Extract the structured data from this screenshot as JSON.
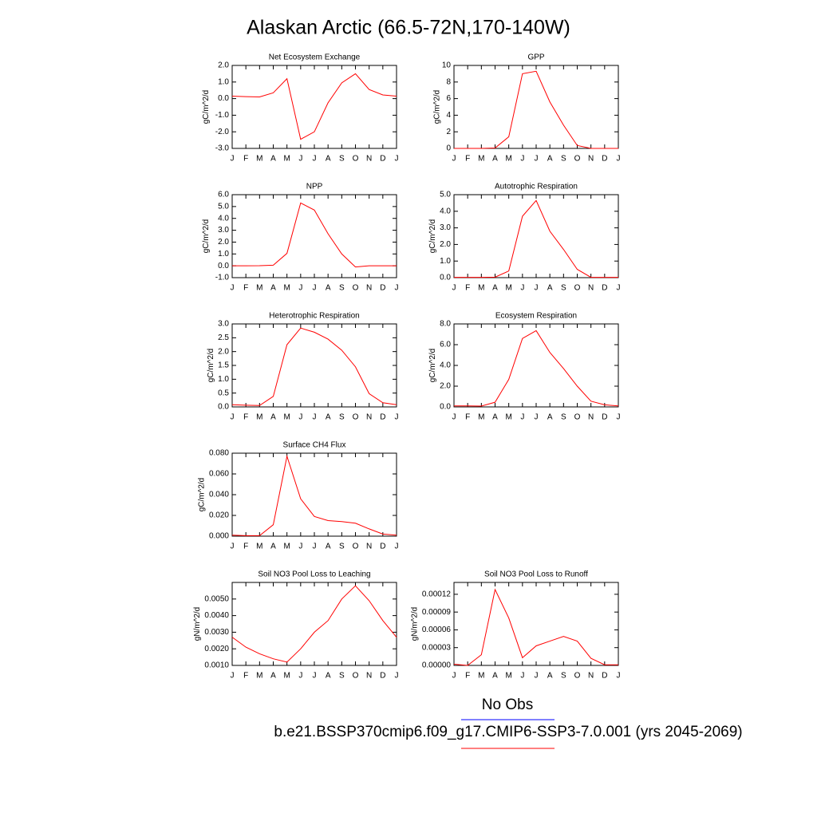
{
  "title": "Alaskan Arctic (66.5-72N,170-140W)",
  "legend": [
    {
      "name": "No Obs",
      "color": "#0000ff"
    },
    {
      "name": "b.e21.BSSP370cmip6.f09_g17.CMIP6-SSP3-7.0.001 (yrs 2045-2069)",
      "color": "#ff0000"
    }
  ],
  "chart_data": [
    {
      "type": "line",
      "title": "Net Ecosystem Exchange",
      "ylabel": "gC/m^2/d",
      "color": "#ff0000",
      "categories": [
        "J",
        "F",
        "M",
        "A",
        "M",
        "J",
        "J",
        "A",
        "S",
        "O",
        "N",
        "D",
        "J"
      ],
      "values": [
        0.15,
        0.12,
        0.1,
        0.35,
        1.2,
        -2.45,
        -2.0,
        -0.25,
        0.95,
        1.5,
        0.55,
        0.22,
        0.15
      ],
      "ylim": [
        -3,
        2
      ],
      "yticks": [
        {
          "value": -3,
          "label": "-3.0"
        },
        {
          "value": -2,
          "label": "-2.0"
        },
        {
          "value": -1,
          "label": "-1.0"
        },
        {
          "value": 0,
          "label": "0.0"
        },
        {
          "value": 1,
          "label": "1.0"
        },
        {
          "value": 2,
          "label": "2.0"
        }
      ]
    },
    {
      "type": "line",
      "title": "GPP",
      "ylabel": "gC/m^2/d",
      "color": "#ff0000",
      "categories": [
        "J",
        "F",
        "M",
        "A",
        "M",
        "J",
        "J",
        "A",
        "S",
        "O",
        "N",
        "D",
        "J"
      ],
      "values": [
        0,
        0,
        0,
        0.05,
        1.4,
        9.0,
        9.3,
        5.6,
        2.8,
        0.35,
        0,
        0,
        0
      ],
      "ylim": [
        0,
        10
      ],
      "yticks": [
        0,
        2,
        4,
        6,
        8,
        10
      ]
    },
    {
      "type": "line",
      "title": "NPP",
      "ylabel": "gC/m^2/d",
      "color": "#ff0000",
      "categories": [
        "J",
        "F",
        "M",
        "A",
        "M",
        "J",
        "J",
        "A",
        "S",
        "O",
        "N",
        "D",
        "J"
      ],
      "values": [
        0,
        0,
        0.01,
        0.05,
        1.05,
        5.3,
        4.7,
        2.7,
        1.0,
        -0.1,
        0,
        0,
        0
      ],
      "ylim": [
        -1,
        6
      ],
      "yticks": [
        {
          "value": -1,
          "label": "-1.0"
        },
        {
          "value": 0,
          "label": "0.0"
        },
        {
          "value": 1,
          "label": "1.0"
        },
        {
          "value": 2,
          "label": "2.0"
        },
        {
          "value": 3,
          "label": "3.0"
        },
        {
          "value": 4,
          "label": "4.0"
        },
        {
          "value": 5,
          "label": "5.0"
        },
        {
          "value": 6,
          "label": "6.0"
        }
      ]
    },
    {
      "type": "line",
      "title": "Autotrophic Respiration",
      "ylabel": "gC/m^2/d",
      "color": "#ff0000",
      "categories": [
        "J",
        "F",
        "M",
        "A",
        "M",
        "J",
        "J",
        "A",
        "S",
        "O",
        "N",
        "D",
        "J"
      ],
      "values": [
        0.02,
        0.02,
        0.02,
        0.03,
        0.4,
        3.7,
        4.65,
        2.8,
        1.7,
        0.5,
        0.02,
        0.02,
        0.02
      ],
      "ylim": [
        0,
        5
      ],
      "yticks": [
        {
          "value": 0,
          "label": "0.0"
        },
        {
          "value": 1,
          "label": "1.0"
        },
        {
          "value": 2,
          "label": "2.0"
        },
        {
          "value": 3,
          "label": "3.0"
        },
        {
          "value": 4,
          "label": "4.0"
        },
        {
          "value": 5,
          "label": "5.0"
        }
      ]
    },
    {
      "type": "line",
      "title": "Heterotrophic Respiration",
      "ylabel": "gC/m^2/d",
      "color": "#ff0000",
      "categories": [
        "J",
        "F",
        "M",
        "A",
        "M",
        "J",
        "J",
        "A",
        "S",
        "O",
        "N",
        "D",
        "J"
      ],
      "values": [
        0.08,
        0.06,
        0.05,
        0.38,
        2.25,
        2.85,
        2.7,
        2.45,
        2.05,
        1.45,
        0.48,
        0.15,
        0.08
      ],
      "ylim": [
        0,
        3
      ],
      "yticks": [
        {
          "value": 0,
          "label": "0.0"
        },
        {
          "value": 0.5,
          "label": "0.5"
        },
        {
          "value": 1,
          "label": "1.0"
        },
        {
          "value": 1.5,
          "label": "1.5"
        },
        {
          "value": 2,
          "label": "2.0"
        },
        {
          "value": 2.5,
          "label": "2.5"
        },
        {
          "value": 3,
          "label": "3.0"
        }
      ]
    },
    {
      "type": "line",
      "title": "Ecosystem Respiration",
      "ylabel": "gC/m^2/d",
      "color": "#ff0000",
      "categories": [
        "J",
        "F",
        "M",
        "A",
        "M",
        "J",
        "J",
        "A",
        "S",
        "O",
        "N",
        "D",
        "J"
      ],
      "values": [
        0.1,
        0.1,
        0.08,
        0.45,
        2.65,
        6.6,
        7.35,
        5.25,
        3.7,
        2.0,
        0.55,
        0.2,
        0.1
      ],
      "ylim": [
        0,
        8
      ],
      "yticks": [
        {
          "value": 0,
          "label": "0.0"
        },
        {
          "value": 2,
          "label": "2.0"
        },
        {
          "value": 4,
          "label": "4.0"
        },
        {
          "value": 6,
          "label": "6.0"
        },
        {
          "value": 8,
          "label": "8.0"
        }
      ]
    },
    {
      "type": "line",
      "title": "Surface CH4 Flux",
      "ylabel": "gC/m^2/d",
      "color": "#ff0000",
      "categories": [
        "J",
        "F",
        "M",
        "A",
        "M",
        "J",
        "J",
        "A",
        "S",
        "O",
        "N",
        "D",
        "J"
      ],
      "values": [
        0.001,
        0.0005,
        0.0005,
        0.011,
        0.077,
        0.036,
        0.019,
        0.015,
        0.014,
        0.0125,
        0.007,
        0.002,
        0.001
      ],
      "ylim": [
        0,
        0.08
      ],
      "yticks": [
        {
          "value": 0,
          "label": "0.000"
        },
        {
          "value": 0.02,
          "label": "0.020"
        },
        {
          "value": 0.04,
          "label": "0.040"
        },
        {
          "value": 0.06,
          "label": "0.060"
        },
        {
          "value": 0.08,
          "label": "0.080"
        }
      ]
    },
    {
      "type": "line",
      "title": "Soil NO3 Pool Loss to Leaching",
      "ylabel": "gN/m^2/d",
      "color": "#ff0000",
      "categories": [
        "J",
        "F",
        "M",
        "A",
        "M",
        "J",
        "J",
        "A",
        "S",
        "O",
        "N",
        "D",
        "J"
      ],
      "values": [
        0.0027,
        0.0021,
        0.0017,
        0.0014,
        0.0012,
        0.002,
        0.003,
        0.0037,
        0.005,
        0.0058,
        0.0049,
        0.0037,
        0.0027
      ],
      "ylim": [
        0.001,
        0.006
      ],
      "yticks": [
        {
          "value": 0.001,
          "label": "0.0010"
        },
        {
          "value": 0.002,
          "label": "0.0020"
        },
        {
          "value": 0.003,
          "label": "0.0030"
        },
        {
          "value": 0.004,
          "label": "0.0040"
        },
        {
          "value": 0.005,
          "label": "0.0050"
        }
      ]
    },
    {
      "type": "line",
      "title": "Soil NO3 Pool Loss to Runoff",
      "ylabel": "gN/m^2/d",
      "color": "#ff0000",
      "categories": [
        "J",
        "F",
        "M",
        "A",
        "M",
        "J",
        "J",
        "A",
        "S",
        "O",
        "N",
        "D",
        "J"
      ],
      "values": [
        2e-06,
        0,
        1.8e-05,
        0.000128,
        8e-05,
        1.3e-05,
        3.3e-05,
        4.1e-05,
        4.9e-05,
        4.1e-05,
        1.2e-05,
        1e-06,
        1e-06
      ],
      "ylim": [
        0,
        0.00014
      ],
      "yticks": [
        {
          "value": 0,
          "label": "0.00000"
        },
        3e-05,
        6e-05,
        9e-05,
        0.00012
      ]
    }
  ]
}
